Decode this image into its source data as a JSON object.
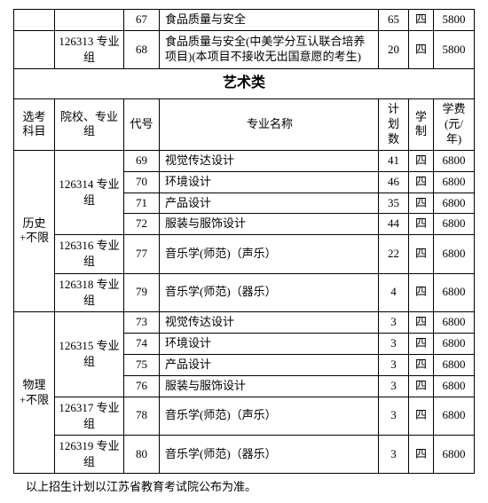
{
  "topRows": [
    {
      "code": "67",
      "name": "食品质量与安全",
      "plan": "65",
      "dur": "四",
      "fee": "5800"
    }
  ],
  "topGroup": {
    "group": "126313 专业组",
    "code": "68",
    "name": "食品质量与安全(中美学分互认联合培养项目)(本项目不接收无出国意愿的考生)",
    "plan": "20",
    "dur": "四",
    "fee": "5800"
  },
  "sectionTitle": "艺术类",
  "headers": {
    "subj": "选考科目",
    "group": "院校、专业组",
    "code": "代号",
    "name": "专业名称",
    "plan": "计划数",
    "dur": "学制",
    "fee": "学费(元/年)"
  },
  "block1": {
    "subj": "历史+不限",
    "g1": {
      "group": "126314 专业组",
      "rows": [
        {
          "code": "69",
          "name": "视觉传达设计",
          "plan": "41",
          "dur": "四",
          "fee": "6800"
        },
        {
          "code": "70",
          "name": "环境设计",
          "plan": "46",
          "dur": "四",
          "fee": "6800"
        },
        {
          "code": "71",
          "name": "产品设计",
          "plan": "35",
          "dur": "四",
          "fee": "6800"
        },
        {
          "code": "72",
          "name": "服装与服饰设计",
          "plan": "44",
          "dur": "四",
          "fee": "6800"
        }
      ]
    },
    "g2": {
      "group": "126316 专业组",
      "code": "77",
      "name": "音乐学(师范)（声乐）",
      "plan": "22",
      "dur": "四",
      "fee": "6800"
    },
    "g3": {
      "group": "126318 专业组",
      "code": "79",
      "name": "音乐学(师范)（器乐）",
      "plan": "4",
      "dur": "四",
      "fee": "6800"
    }
  },
  "block2": {
    "subj": "物理+不限",
    "g1": {
      "group": "126315 专业组",
      "rows": [
        {
          "code": "73",
          "name": "视觉传达设计",
          "plan": "3",
          "dur": "四",
          "fee": "6800"
        },
        {
          "code": "74",
          "name": "环境设计",
          "plan": "3",
          "dur": "四",
          "fee": "6800"
        },
        {
          "code": "75",
          "name": "产品设计",
          "plan": "3",
          "dur": "四",
          "fee": "6800"
        },
        {
          "code": "76",
          "name": "服装与服饰设计",
          "plan": "3",
          "dur": "四",
          "fee": "6800"
        }
      ]
    },
    "g2": {
      "group": "126317 专业组",
      "code": "78",
      "name": "音乐学(师范)（声乐）",
      "plan": "3",
      "dur": "四",
      "fee": "6800"
    },
    "g3": {
      "group": "126319 专业组",
      "code": "80",
      "name": "音乐学(师范)（器乐）",
      "plan": "3",
      "dur": "四",
      "fee": "6800"
    }
  },
  "footnote": "以上招生计划以江苏省教育考试院公布为准。"
}
